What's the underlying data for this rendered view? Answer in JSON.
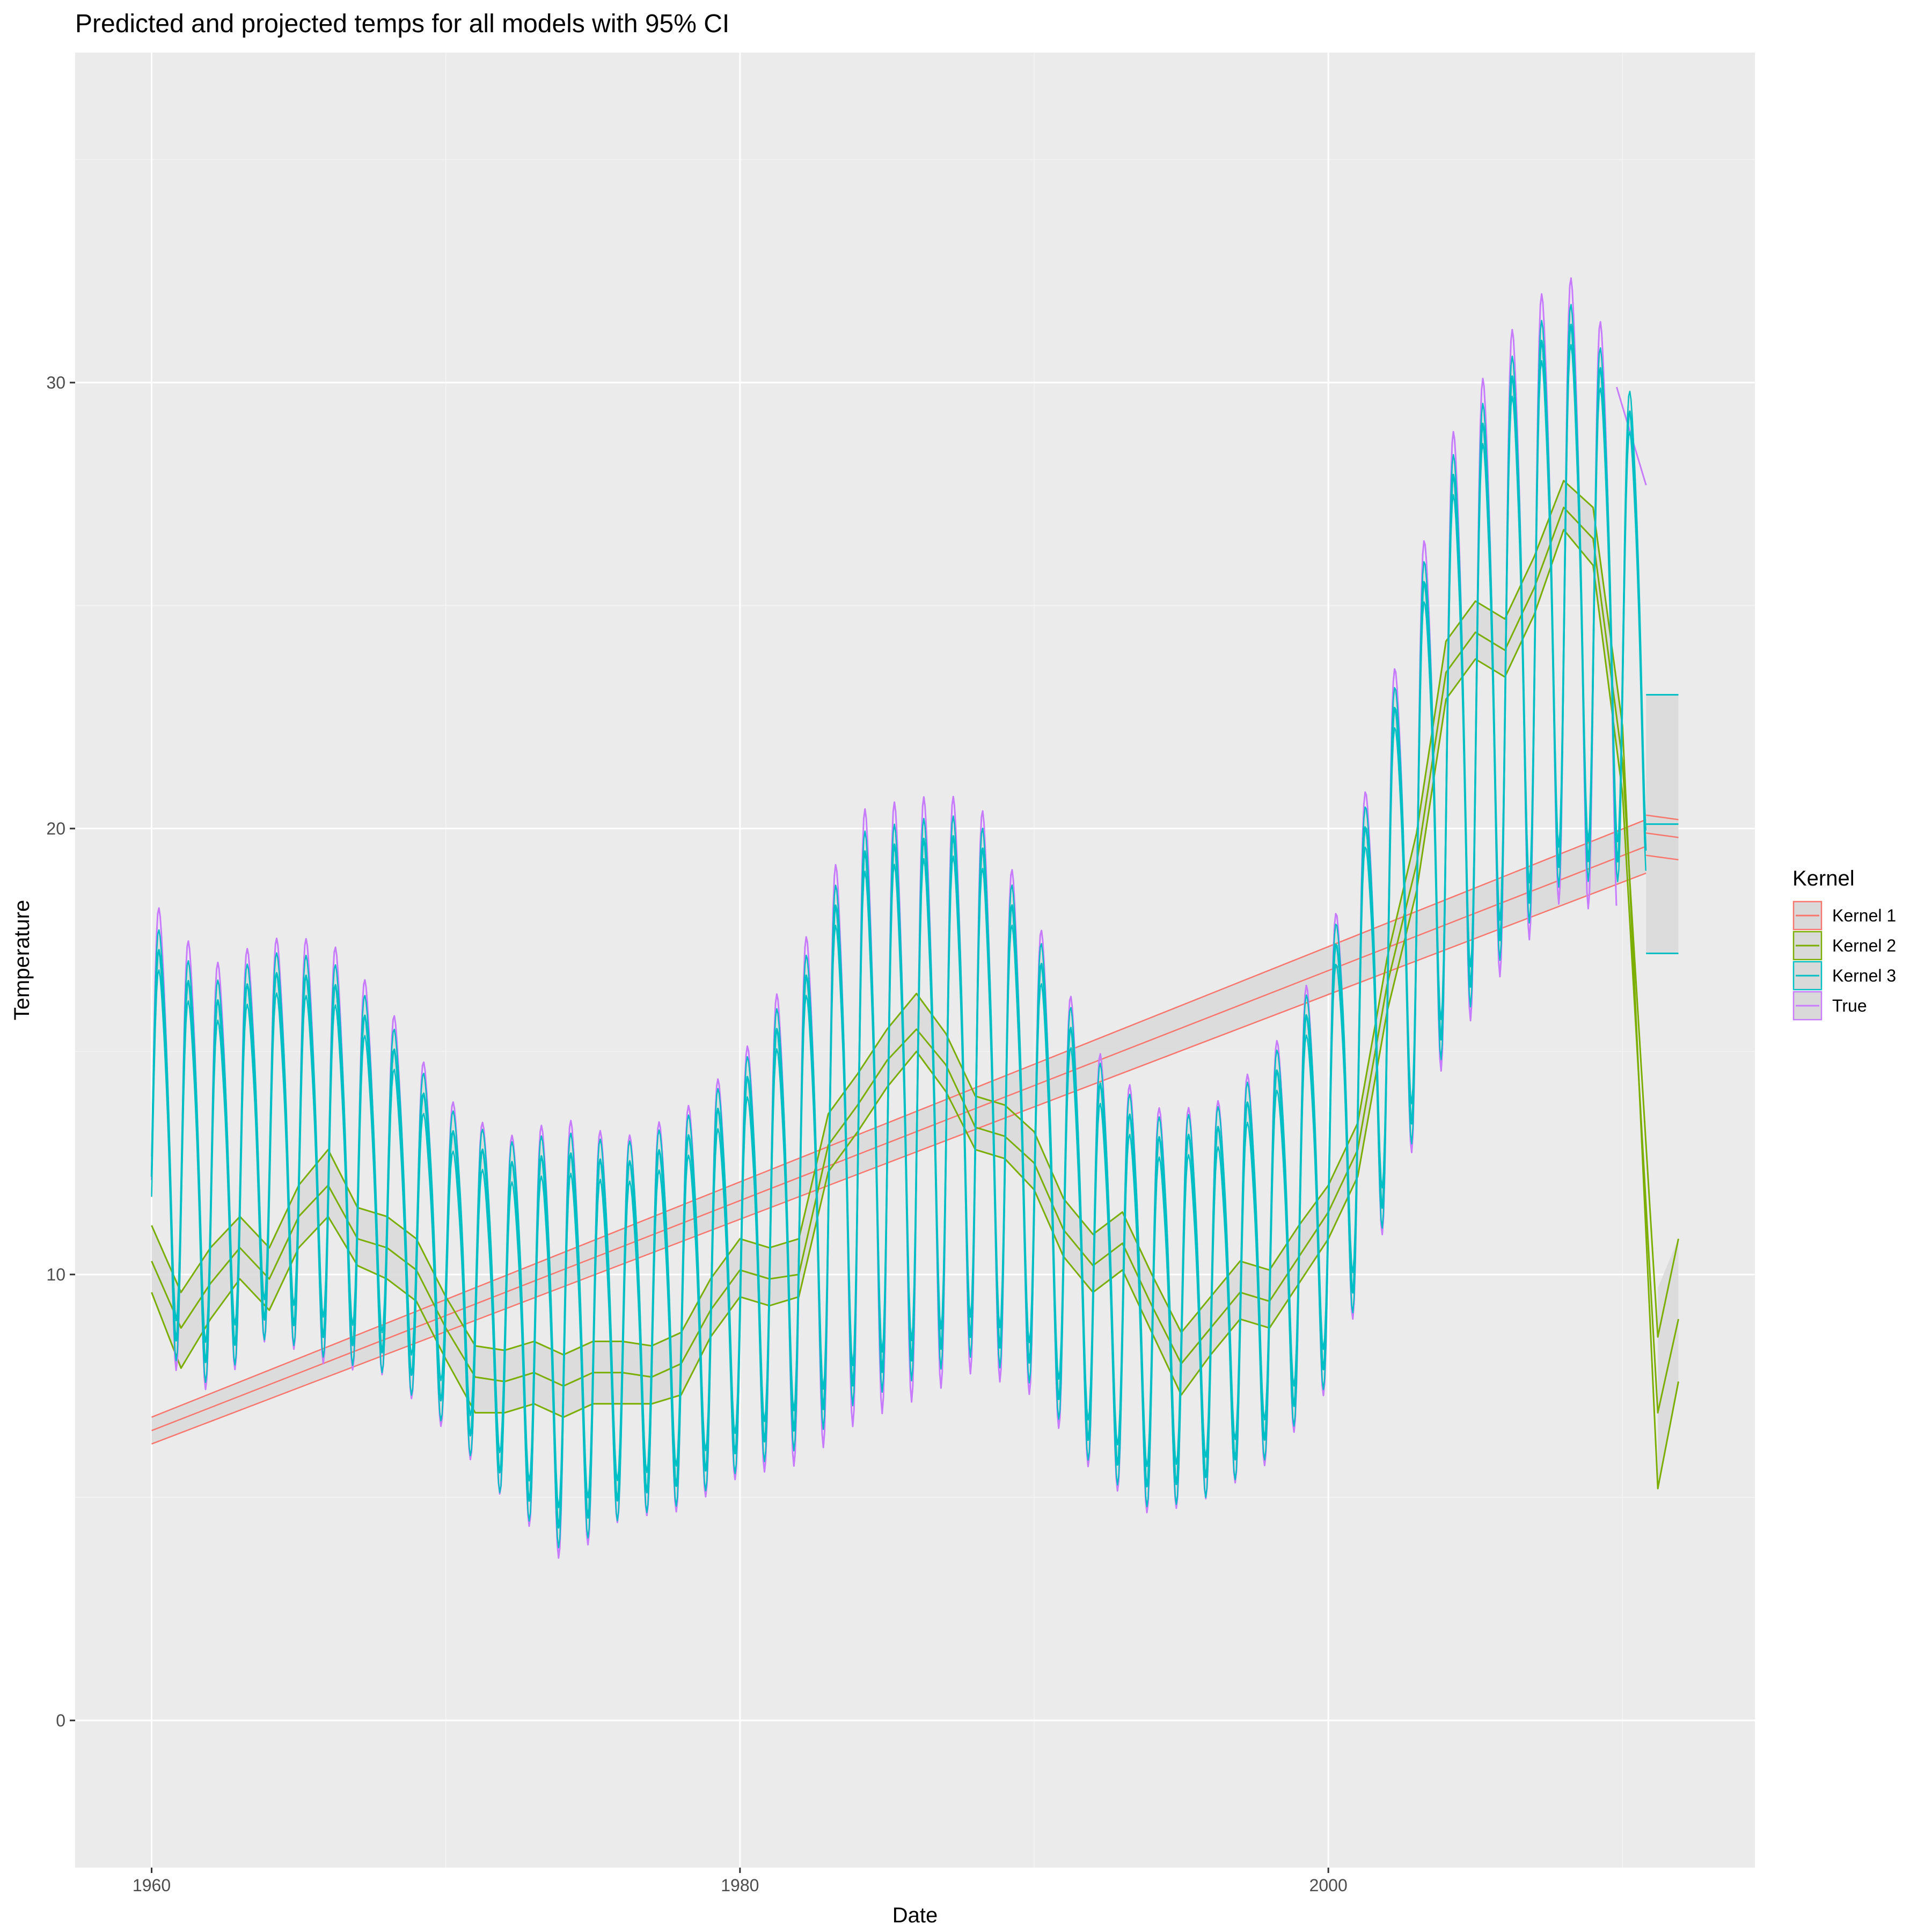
{
  "chart_data": {
    "type": "line",
    "title": "Predicted and projected temps for all models with 95% CI",
    "xlabel": "Date",
    "ylabel": "Temperature",
    "xlim": [
      1957.4,
      2014.5
    ],
    "ylim": [
      -3.3,
      37.4
    ],
    "x_ticks": [
      1960,
      1980,
      2000
    ],
    "y_ticks": [
      0,
      10,
      20,
      30
    ],
    "grid": true,
    "legend": {
      "title": "Kernel",
      "position": "right"
    },
    "colors": {
      "Kernel 1": "#F8766D",
      "Kernel 2": "#7CAE00",
      "Kernel 3": "#00BFC4",
      "True": "#C77CFF",
      "band_fill": "#d9d9d9"
    },
    "series": [
      {
        "name": "True",
        "style": "seasonal",
        "anchors": [
          [
            1960,
            13.8,
            4.9
          ],
          [
            1962,
            12.6,
            4.6
          ],
          [
            1964,
            13.5,
            4.3
          ],
          [
            1966,
            13.2,
            4.6
          ],
          [
            1968,
            12.3,
            4.0
          ],
          [
            1970,
            10.6,
            3.6
          ],
          [
            1972,
            9.4,
            3.9
          ],
          [
            1974,
            9.0,
            4.8
          ],
          [
            1976,
            9.2,
            4.1
          ],
          [
            1978,
            9.6,
            4.3
          ],
          [
            1980,
            10.6,
            4.5
          ],
          [
            1982,
            12.0,
            5.5
          ],
          [
            1984,
            14.2,
            6.6
          ],
          [
            1986,
            14.6,
            6.5
          ],
          [
            1988,
            14.9,
            6.2
          ],
          [
            1990,
            13.2,
            5.2
          ],
          [
            1992,
            10.8,
            4.6
          ],
          [
            1994,
            9.6,
            4.4
          ],
          [
            1996,
            9.8,
            4.2
          ],
          [
            1998,
            10.8,
            4.4
          ],
          [
            2000,
            12.9,
            4.8
          ],
          [
            2002,
            17.6,
            5.6
          ],
          [
            2004,
            22.4,
            6.6
          ],
          [
            2006,
            24.6,
            6.8
          ],
          [
            2008,
            26.2,
            6.8
          ],
          [
            2009.8,
            25.0,
            6.2
          ]
        ],
        "tail": [
          [
            2009.8,
            29.9
          ],
          [
            2010.8,
            27.7
          ]
        ]
      },
      {
        "name": "Kernel 3",
        "style": "seasonal",
        "anchors": [
          [
            1960,
            13.6,
            4.1
          ],
          [
            1962,
            12.4,
            3.9
          ],
          [
            1964,
            13.3,
            3.7
          ],
          [
            1966,
            13.0,
            3.9
          ],
          [
            1968,
            12.1,
            3.4
          ],
          [
            1970,
            10.5,
            3.0
          ],
          [
            1972,
            9.3,
            3.4
          ],
          [
            1974,
            8.9,
            4.1
          ],
          [
            1976,
            9.1,
            3.6
          ],
          [
            1978,
            9.5,
            3.7
          ],
          [
            1980,
            10.5,
            3.9
          ],
          [
            1982,
            11.9,
            4.7
          ],
          [
            1984,
            14.1,
            5.7
          ],
          [
            1986,
            14.5,
            5.6
          ],
          [
            1988,
            14.8,
            5.4
          ],
          [
            1990,
            13.1,
            4.5
          ],
          [
            1992,
            10.7,
            4.0
          ],
          [
            1994,
            9.5,
            3.8
          ],
          [
            1996,
            9.7,
            3.7
          ],
          [
            1998,
            10.7,
            3.8
          ],
          [
            2000,
            12.8,
            4.2
          ],
          [
            2002,
            17.4,
            4.9
          ],
          [
            2004,
            22.2,
            5.8
          ],
          [
            2006,
            24.4,
            5.9
          ],
          [
            2008,
            26.0,
            5.9
          ],
          [
            2010.8,
            24.5,
            4.6
          ]
        ],
        "projection": {
          "x": [
            2010.8,
            2011.9
          ],
          "mean": [
            20.1,
            20.1
          ],
          "lower": [
            17.2,
            17.2
          ],
          "upper": [
            23.0,
            23.0
          ]
        }
      },
      {
        "name": "Kernel 2",
        "style": "smooth",
        "x": [
          1960,
          1961,
          1962,
          1963,
          1964,
          1965,
          1966,
          1967,
          1968,
          1969,
          1970,
          1971,
          1972,
          1973,
          1974,
          1975,
          1976,
          1977,
          1978,
          1979,
          1980,
          1981,
          1982,
          1983,
          1984,
          1985,
          1986,
          1987,
          1988,
          1989,
          1990,
          1991,
          1992,
          1993,
          1994,
          1995,
          1996,
          1997,
          1998,
          1999,
          2000,
          2001,
          2002,
          2003,
          2004,
          2005,
          2006,
          2007,
          2008,
          2009,
          2010
        ],
        "mean": [
          10.3,
          8.8,
          9.8,
          10.6,
          9.9,
          11.3,
          12.0,
          10.8,
          10.6,
          10.1,
          8.8,
          7.7,
          7.6,
          7.8,
          7.5,
          7.8,
          7.8,
          7.7,
          8.0,
          9.2,
          10.1,
          9.9,
          10.0,
          12.9,
          13.8,
          14.8,
          15.5,
          14.7,
          13.3,
          13.1,
          12.5,
          11.0,
          10.2,
          10.7,
          9.3,
          8.0,
          8.8,
          9.6,
          9.4,
          10.4,
          11.4,
          12.8,
          16.5,
          19.2,
          23.5,
          24.4,
          24.0,
          25.4,
          27.2,
          26.5,
          21.5
        ],
        "lower": [
          9.6,
          7.9,
          9.0,
          9.9,
          9.2,
          10.6,
          11.3,
          10.2,
          9.9,
          9.4,
          8.1,
          6.9,
          6.9,
          7.1,
          6.8,
          7.1,
          7.1,
          7.1,
          7.3,
          8.6,
          9.5,
          9.3,
          9.5,
          12.3,
          13.2,
          14.2,
          15.0,
          14.1,
          12.8,
          12.6,
          11.9,
          10.4,
          9.6,
          10.1,
          8.7,
          7.3,
          8.2,
          9.0,
          8.8,
          9.8,
          10.8,
          12.2,
          15.9,
          18.6,
          22.9,
          23.8,
          23.4,
          24.8,
          26.7,
          25.9,
          20.8
        ],
        "upper": [
          11.1,
          9.6,
          10.6,
          11.3,
          10.6,
          12.0,
          12.8,
          11.5,
          11.3,
          10.8,
          9.5,
          8.4,
          8.3,
          8.5,
          8.2,
          8.5,
          8.5,
          8.4,
          8.7,
          9.9,
          10.8,
          10.6,
          10.8,
          13.6,
          14.5,
          15.5,
          16.3,
          15.4,
          14.0,
          13.8,
          13.2,
          11.7,
          10.9,
          11.4,
          10.0,
          8.7,
          9.5,
          10.3,
          10.1,
          11.1,
          12.0,
          13.4,
          17.1,
          19.9,
          24.2,
          25.1,
          24.7,
          26.1,
          27.8,
          27.2,
          22.3
        ],
        "projection": {
          "x": [
            2011.2,
            2011.9
          ],
          "mean": [
            8.6,
            10.8
          ],
          "lower": [
            6.9,
            9.0
          ],
          "upper": [
            9.7,
            10.8
          ],
          "lower2": [
            5.2,
            7.6
          ]
        }
      },
      {
        "name": "Kernel 1",
        "style": "trend",
        "x": [
          1960,
          2010.8
        ],
        "mean": [
          6.5,
          19.6
        ],
        "lower": [
          6.2,
          19.0
        ],
        "upper": [
          6.8,
          20.2
        ],
        "projection": {
          "x": [
            2010.8,
            2011.9
          ],
          "mean": [
            19.9,
            19.8
          ],
          "lower": [
            19.4,
            19.3
          ],
          "upper": [
            20.3,
            20.2
          ]
        }
      }
    ]
  }
}
